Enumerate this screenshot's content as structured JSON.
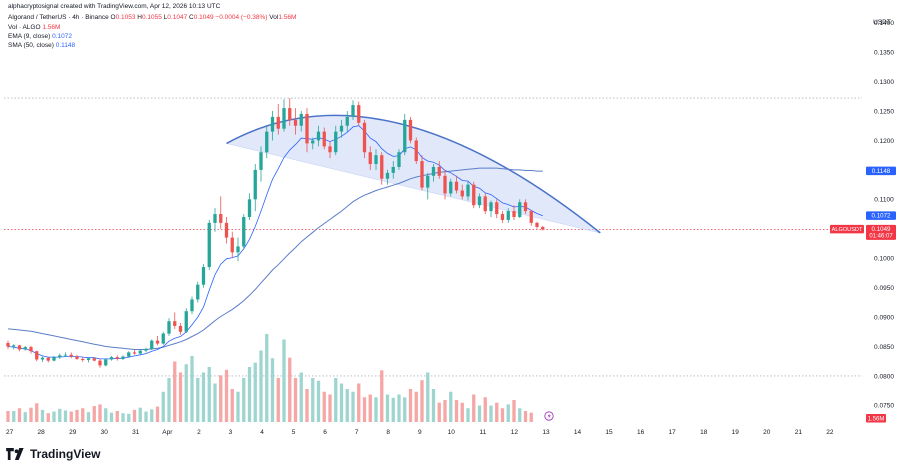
{
  "header": {
    "created": "alphacryptosignal created with TradingView.com, Apr 12, 2026 10:13 UTC",
    "symbol": "Algorand / TetherUS · 4h · Binance",
    "o_label": "O",
    "o_val": "0.1053",
    "h_label": "H",
    "h_val": "0.1055",
    "l_label": "L",
    "l_val": "0.1047",
    "c_label": "C",
    "c_val": "0.1049",
    "chg": "−0.0004 (−0.38%)",
    "vol_label": "Vol",
    "vol_val": "1.56M",
    "vol_title": "Vol · ALGO",
    "vol_title_val": "1.56M",
    "ema_title": "EMA (9, close)",
    "ema_val": "0.1072",
    "sma_title": "SMA (50, close)",
    "sma_val": "0.1148"
  },
  "footer": {
    "brand": "TradingView"
  },
  "colors": {
    "up": "#26a69a",
    "down": "#ef5350",
    "vol_up": "#9fd5cf",
    "vol_down": "#f5a6a5",
    "ema": "#2962ff",
    "sma": "#5b7ec9",
    "arc": "#4a72c8",
    "band": "#c9d5f5",
    "price_tag": "#f23645",
    "sma_tag": "#2962ff"
  },
  "chart_data": {
    "type": "candlestick",
    "pair": "ALGOUSDT",
    "y_unit": "USDT",
    "ylim": [
      0.0715,
      0.1425
    ],
    "y_ticks": [
      0.14,
      0.135,
      0.13,
      0.125,
      0.12,
      0.115,
      0.11,
      0.105,
      0.1,
      0.095,
      0.09,
      0.085,
      0.08,
      0.075
    ],
    "x_ticks": [
      "27",
      "28",
      "29",
      "30",
      "31",
      "Apr",
      "2",
      "3",
      "4",
      "5",
      "6",
      "7",
      "8",
      "9",
      "10",
      "11",
      "12",
      "13",
      "14",
      "15",
      "16",
      "17",
      "18",
      "19",
      "20",
      "21",
      "22"
    ],
    "last_price": 0.1049,
    "last_price_label": "ALGOUSDT",
    "last_price_value": "0.1049",
    "countdown": "01:46:07",
    "sma_tag": "0.1148",
    "ema_tag": "0.1072",
    "volume_tag": "1.56M",
    "dotted_levels": [
      0.1272,
      0.08
    ],
    "candles": [
      [
        0.0856,
        0.086,
        0.0846,
        0.085
      ],
      [
        0.085,
        0.0854,
        0.0845,
        0.0852
      ],
      [
        0.0852,
        0.0853,
        0.0842,
        0.0845
      ],
      [
        0.0845,
        0.0851,
        0.0843,
        0.0849
      ],
      [
        0.0849,
        0.0851,
        0.0838,
        0.0842
      ],
      [
        0.0842,
        0.0843,
        0.0825,
        0.0828
      ],
      [
        0.0828,
        0.0833,
        0.0824,
        0.0831
      ],
      [
        0.0831,
        0.0832,
        0.0823,
        0.0826
      ],
      [
        0.0826,
        0.0834,
        0.0825,
        0.0832
      ],
      [
        0.0832,
        0.0838,
        0.0829,
        0.0835
      ],
      [
        0.0835,
        0.084,
        0.0832,
        0.0836
      ],
      [
        0.0836,
        0.084,
        0.083,
        0.0833
      ],
      [
        0.0833,
        0.0836,
        0.0827,
        0.0829
      ],
      [
        0.0829,
        0.0832,
        0.0824,
        0.0827
      ],
      [
        0.0827,
        0.0831,
        0.0823,
        0.083
      ],
      [
        0.083,
        0.0832,
        0.0825,
        0.0826
      ],
      [
        0.0826,
        0.0829,
        0.0814,
        0.0818
      ],
      [
        0.0818,
        0.083,
        0.0816,
        0.0828
      ],
      [
        0.0828,
        0.0834,
        0.0826,
        0.0832
      ],
      [
        0.0832,
        0.0835,
        0.0826,
        0.0829
      ],
      [
        0.0829,
        0.0835,
        0.0827,
        0.0833
      ],
      [
        0.0833,
        0.0842,
        0.0831,
        0.084
      ],
      [
        0.084,
        0.0846,
        0.0836,
        0.0838
      ],
      [
        0.0838,
        0.0844,
        0.0835,
        0.0843
      ],
      [
        0.0843,
        0.0848,
        0.084,
        0.0846
      ],
      [
        0.0846,
        0.0862,
        0.0844,
        0.086
      ],
      [
        0.086,
        0.0868,
        0.0852,
        0.0855
      ],
      [
        0.0855,
        0.0875,
        0.0853,
        0.0872
      ],
      [
        0.0872,
        0.0898,
        0.0868,
        0.0893
      ],
      [
        0.0893,
        0.0908,
        0.088,
        0.0885
      ],
      [
        0.0885,
        0.089,
        0.087,
        0.0875
      ],
      [
        0.0875,
        0.0915,
        0.0873,
        0.091
      ],
      [
        0.091,
        0.0935,
        0.0905,
        0.093
      ],
      [
        0.093,
        0.096,
        0.0925,
        0.0955
      ],
      [
        0.0955,
        0.099,
        0.095,
        0.0985
      ],
      [
        0.0985,
        0.1065,
        0.098,
        0.106
      ],
      [
        0.106,
        0.1085,
        0.1045,
        0.1075
      ],
      [
        0.1075,
        0.1105,
        0.105,
        0.106
      ],
      [
        0.106,
        0.107,
        0.1025,
        0.1035
      ],
      [
        0.1035,
        0.1045,
        0.1,
        0.101
      ],
      [
        0.101,
        0.1035,
        0.0995,
        0.102
      ],
      [
        0.102,
        0.1075,
        0.1015,
        0.107
      ],
      [
        0.107,
        0.111,
        0.1065,
        0.11
      ],
      [
        0.11,
        0.116,
        0.108,
        0.115
      ],
      [
        0.115,
        0.119,
        0.113,
        0.118
      ],
      [
        0.118,
        0.1225,
        0.117,
        0.1215
      ],
      [
        0.1215,
        0.125,
        0.12,
        0.124
      ],
      [
        0.124,
        0.1262,
        0.121,
        0.122
      ],
      [
        0.122,
        0.127,
        0.1215,
        0.1255
      ],
      [
        0.1255,
        0.1272,
        0.1225,
        0.1235
      ],
      [
        0.1235,
        0.1255,
        0.121,
        0.1225
      ],
      [
        0.1225,
        0.125,
        0.1215,
        0.1245
      ],
      [
        0.1245,
        0.1255,
        0.118,
        0.1195
      ],
      [
        0.1195,
        0.1205,
        0.1185,
        0.12
      ],
      [
        0.12,
        0.1225,
        0.119,
        0.1215
      ],
      [
        0.1215,
        0.1222,
        0.1185,
        0.119
      ],
      [
        0.119,
        0.1198,
        0.117,
        0.118
      ],
      [
        0.118,
        0.1225,
        0.1175,
        0.1215
      ],
      [
        0.1215,
        0.1235,
        0.1205,
        0.1225
      ],
      [
        0.1225,
        0.125,
        0.1215,
        0.124
      ],
      [
        0.124,
        0.1268,
        0.1235,
        0.126
      ],
      [
        0.126,
        0.1266,
        0.1225,
        0.123
      ],
      [
        0.123,
        0.1235,
        0.117,
        0.118
      ],
      [
        0.118,
        0.119,
        0.115,
        0.116
      ],
      [
        0.116,
        0.1185,
        0.115,
        0.1175
      ],
      [
        0.1175,
        0.118,
        0.1125,
        0.1135
      ],
      [
        0.1135,
        0.115,
        0.1125,
        0.1145
      ],
      [
        0.1145,
        0.1165,
        0.1135,
        0.1155
      ],
      [
        0.1155,
        0.1185,
        0.115,
        0.118
      ],
      [
        0.118,
        0.1245,
        0.1175,
        0.1235
      ],
      [
        0.1235,
        0.124,
        0.1195,
        0.12
      ],
      [
        0.12,
        0.1205,
        0.116,
        0.1165
      ],
      [
        0.1165,
        0.1175,
        0.1115,
        0.112
      ],
      [
        0.112,
        0.1145,
        0.11,
        0.114
      ],
      [
        0.114,
        0.116,
        0.113,
        0.1155
      ],
      [
        0.1155,
        0.1165,
        0.1135,
        0.114
      ],
      [
        0.114,
        0.115,
        0.11,
        0.111
      ],
      [
        0.111,
        0.1135,
        0.1105,
        0.113
      ],
      [
        0.113,
        0.114,
        0.111,
        0.1115
      ],
      [
        0.1115,
        0.1125,
        0.11,
        0.1105
      ],
      [
        0.1105,
        0.113,
        0.1098,
        0.1125
      ],
      [
        0.1125,
        0.113,
        0.1085,
        0.109
      ],
      [
        0.109,
        0.111,
        0.1085,
        0.1105
      ],
      [
        0.1105,
        0.111,
        0.1075,
        0.108
      ],
      [
        0.108,
        0.1098,
        0.107,
        0.1095
      ],
      [
        0.1095,
        0.11,
        0.1068,
        0.1075
      ],
      [
        0.1075,
        0.108,
        0.106,
        0.1065
      ],
      [
        0.1065,
        0.1085,
        0.106,
        0.108
      ],
      [
        0.108,
        0.109,
        0.1065,
        0.107
      ],
      [
        0.107,
        0.11,
        0.1068,
        0.1095
      ],
      [
        0.1095,
        0.11,
        0.1075,
        0.108
      ],
      [
        0.108,
        0.1082,
        0.1055,
        0.106
      ],
      [
        0.106,
        0.1062,
        0.105,
        0.1053
      ],
      [
        0.1053,
        0.1055,
        0.1047,
        0.1049
      ]
    ],
    "volume_ylim": [
      0,
      20
    ],
    "volumes": [
      2,
      2,
      2.5,
      1.8,
      2.6,
      3.4,
      2.2,
      1.6,
      1.9,
      2.4,
      2.1,
      1.9,
      2.2,
      2.5,
      1.8,
      2.9,
      3.2,
      2.5,
      1.7,
      2.0,
      1.6,
      1.5,
      2.2,
      2.6,
      1.9,
      2.3,
      2.8,
      5.5,
      8,
      11,
      9,
      10.5,
      12,
      8,
      9,
      10,
      7,
      8.5,
      9.5,
      6,
      5.5,
      8,
      10,
      10.8,
      13,
      16,
      11.6,
      8,
      15,
      11.7,
      8,
      9,
      6,
      8,
      7.5,
      5.5,
      5,
      8,
      7,
      6,
      5.5,
      7,
      4.5,
      5,
      4.5,
      9.4,
      5,
      4.4,
      5,
      4.5,
      6,
      5.5,
      7.6,
      9,
      6,
      3.5,
      4,
      5.5,
      4,
      3.5,
      2.5,
      5,
      3,
      4.5,
      3,
      3.5,
      2.5,
      3.2,
      4,
      2.5,
      2,
      1.7
    ],
    "ema9": [
      0.085,
      0.0849,
      0.0847,
      0.0846,
      0.0843,
      0.0838,
      0.0834,
      0.0832,
      0.0832,
      0.0832,
      0.0833,
      0.0833,
      0.0833,
      0.0832,
      0.0831,
      0.0831,
      0.0829,
      0.0829,
      0.0829,
      0.083,
      0.083,
      0.0832,
      0.0834,
      0.0836,
      0.0838,
      0.0842,
      0.0845,
      0.085,
      0.0859,
      0.0864,
      0.0867,
      0.0875,
      0.0887,
      0.09,
      0.0917,
      0.0946,
      0.0972,
      0.099,
      0.0999,
      0.1001,
      0.1004,
      0.1016,
      0.1032,
      0.1054,
      0.108,
      0.1108,
      0.1134,
      0.1152,
      0.1171,
      0.1184,
      0.1193,
      0.1204,
      0.1203,
      0.1202,
      0.1205,
      0.1202,
      0.1198,
      0.1202,
      0.1207,
      0.1214,
      0.1223,
      0.1225,
      0.1216,
      0.1204,
      0.1198,
      0.1186,
      0.1178,
      0.1173,
      0.1174,
      0.1186,
      0.1189,
      0.1184,
      0.1171,
      0.1165,
      0.1163,
      0.1158,
      0.1149,
      0.1145,
      0.1139,
      0.1132,
      0.1131,
      0.1122,
      0.1119,
      0.1111,
      0.1108,
      0.1101,
      0.1094,
      0.1091,
      0.1087,
      0.1088,
      0.1087,
      0.1081,
      0.1076,
      0.1072
    ],
    "sma50": [
      0.088,
      0.0879,
      0.0878,
      0.0877,
      0.0876,
      0.0874,
      0.0872,
      0.087,
      0.0868,
      0.0866,
      0.0864,
      0.0862,
      0.086,
      0.0858,
      0.0856,
      0.0854,
      0.0852,
      0.085,
      0.0849,
      0.0848,
      0.0847,
      0.0846,
      0.0845,
      0.0845,
      0.0845,
      0.0846,
      0.0847,
      0.0849,
      0.0852,
      0.0855,
      0.0858,
      0.0862,
      0.0867,
      0.0872,
      0.0878,
      0.0886,
      0.0894,
      0.0901,
      0.0907,
      0.0913,
      0.092,
      0.0928,
      0.0937,
      0.0947,
      0.0958,
      0.0969,
      0.098,
      0.0989,
      0.0999,
      0.1009,
      0.1018,
      0.1028,
      0.1036,
      0.1044,
      0.1052,
      0.1059,
      0.1066,
      0.1073,
      0.108,
      0.1088,
      0.1096,
      0.1102,
      0.1107,
      0.1111,
      0.1115,
      0.1118,
      0.1121,
      0.1124,
      0.1127,
      0.1131,
      0.1135,
      0.1138,
      0.114,
      0.1142,
      0.1144,
      0.1146,
      0.1147,
      0.1148,
      0.1149,
      0.115,
      0.1151,
      0.1152,
      0.1153,
      0.1153,
      0.1153,
      0.1153,
      0.1152,
      0.1151,
      0.115,
      0.115,
      0.1149,
      0.1149,
      0.1148,
      0.1148
    ],
    "annotation": {
      "type": "arc_pattern",
      "arc": [
        [
          0.1195,
          0
        ],
        [
          0.124,
          0
        ],
        [
          0.1272,
          0
        ],
        [
          0.1262,
          0
        ],
        [
          0.1225,
          0
        ],
        [
          0.116,
          0
        ],
        [
          0.1043,
          0
        ]
      ],
      "band_lower": [
        0.1195,
        0.1055
      ]
    }
  }
}
